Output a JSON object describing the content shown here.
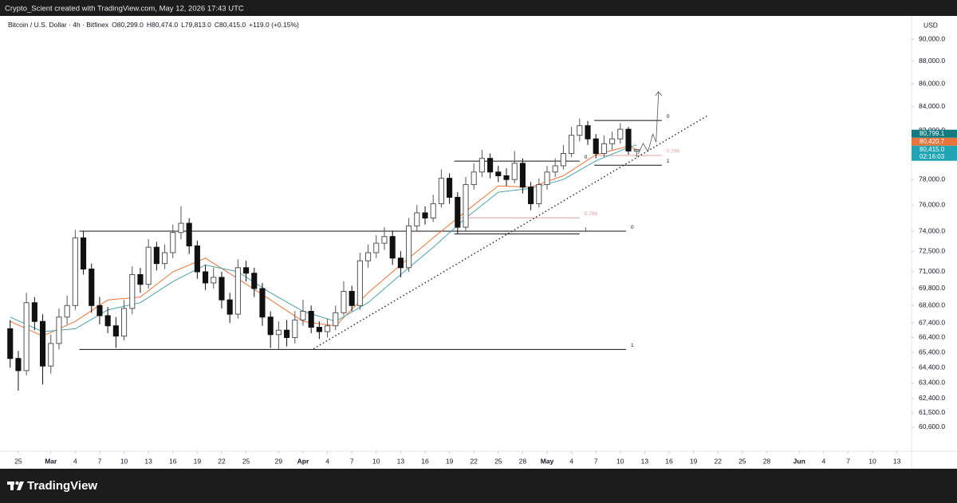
{
  "top_bar": {
    "text": "Crypto_Scient created with TradingView.com, May 12, 2026 17:43 UTC"
  },
  "header": {
    "symbol": "Bitcoin / U.S. Dollar · 4h · Bitfinex",
    "fields": [
      "O80,299.0",
      "H80,474.0",
      "L79,813.0",
      "C80,415.0",
      "+119.0 (+0.15%)"
    ]
  },
  "footer": {
    "logo_text": "TradingView"
  },
  "chart_data": {
    "type": "candlestick",
    "y_unit": "USD",
    "log_scale": true,
    "grid": false,
    "up_color": "#555555",
    "down_color": "#111111",
    "xlim": [
      -2.25,
      109.8
    ],
    "ylim": [
      59140,
      92150
    ],
    "xticks": [
      {
        "value": 0,
        "label": "25"
      },
      {
        "value": 4,
        "label": "Mar"
      },
      {
        "value": 7,
        "label": "4"
      },
      {
        "value": 10,
        "label": "7"
      },
      {
        "value": 13,
        "label": "10"
      },
      {
        "value": 16,
        "label": "13"
      },
      {
        "value": 19,
        "label": "16"
      },
      {
        "value": 22,
        "label": "19"
      },
      {
        "value": 25,
        "label": "22"
      },
      {
        "value": 28,
        "label": "25"
      },
      {
        "value": 32,
        "label": "29"
      },
      {
        "value": 35,
        "label": "Apr"
      },
      {
        "value": 38,
        "label": "4"
      },
      {
        "value": 41,
        "label": "7"
      },
      {
        "value": 44,
        "label": "10"
      },
      {
        "value": 47,
        "label": "13"
      },
      {
        "value": 50,
        "label": "16"
      },
      {
        "value": 53,
        "label": "19"
      },
      {
        "value": 56,
        "label": "22"
      },
      {
        "value": 59,
        "label": "25"
      },
      {
        "value": 62,
        "label": "28"
      },
      {
        "value": 65,
        "label": "May"
      },
      {
        "value": 68,
        "label": "4"
      },
      {
        "value": 71,
        "label": "7"
      },
      {
        "value": 74,
        "label": "10"
      },
      {
        "value": 77,
        "label": "13"
      },
      {
        "value": 80,
        "label": "16"
      },
      {
        "value": 83,
        "label": "19"
      },
      {
        "value": 86,
        "label": "22"
      },
      {
        "value": 89,
        "label": "25"
      },
      {
        "value": 92,
        "label": "28"
      },
      {
        "value": 96,
        "label": "Jun"
      },
      {
        "value": 99,
        "label": "4"
      },
      {
        "value": 102,
        "label": "7"
      },
      {
        "value": 105,
        "label": "10"
      },
      {
        "value": 108,
        "label": "13"
      }
    ],
    "yticks": [
      {
        "value": 90000,
        "label": "90,000.0"
      },
      {
        "value": 88000,
        "label": "88,000.0"
      },
      {
        "value": 86000,
        "label": "86,000.0"
      },
      {
        "value": 84000,
        "label": "84,000.0"
      },
      {
        "value": 82000,
        "label": "82,000.0"
      },
      {
        "value": 78000,
        "label": "78,000.0"
      },
      {
        "value": 76000,
        "label": "76,000.0"
      },
      {
        "value": 74000,
        "label": "74,000.0"
      },
      {
        "value": 72500,
        "label": "72,500.0"
      },
      {
        "value": 71000,
        "label": "71,000.0"
      },
      {
        "value": 69800,
        "label": "69,800.0"
      },
      {
        "value": 68600,
        "label": "68,600.0"
      },
      {
        "value": 67400,
        "label": "67,400.0"
      },
      {
        "value": 66400,
        "label": "66,400.0"
      },
      {
        "value": 65400,
        "label": "65,400.0"
      },
      {
        "value": 64400,
        "label": "64,400.0"
      },
      {
        "value": 63400,
        "label": "63,400.0"
      },
      {
        "value": 62400,
        "label": "62,400.0"
      },
      {
        "value": 61500,
        "label": "61,500.0"
      },
      {
        "value": 60600,
        "label": "60,600.0"
      }
    ],
    "x": [
      -1,
      0,
      1,
      2,
      3,
      4,
      5,
      6,
      7,
      8,
      9,
      10,
      11,
      12,
      13,
      14,
      15,
      16,
      17,
      18,
      19,
      20,
      21,
      22,
      23,
      24,
      25,
      26,
      27,
      28,
      29,
      30,
      31,
      32,
      33,
      34,
      35,
      36,
      37,
      38,
      39,
      40,
      41,
      42,
      43,
      44,
      45,
      46,
      47,
      48,
      49,
      50,
      51,
      52,
      53,
      54,
      55,
      56,
      57,
      58,
      59,
      60,
      61,
      62,
      63,
      64,
      65,
      66,
      67,
      68,
      69,
      70,
      71,
      72,
      73,
      74,
      75,
      76
    ],
    "open": [
      67000,
      65000,
      64200,
      68800,
      67500,
      64500,
      66000,
      67800,
      68600,
      73500,
      71200,
      68600,
      67900,
      67200,
      66500,
      68400,
      70800,
      70100,
      72800,
      71600,
      72400,
      73900,
      74600,
      72900,
      71000,
      70200,
      70600,
      69000,
      68000,
      71300,
      70900,
      69800,
      67800,
      66600,
      66900,
      66400,
      67600,
      68200,
      67100,
      66800,
      67200,
      68100,
      69600,
      68600,
      71800,
      72400,
      73100,
      73600,
      72000,
      71300,
      74400,
      75400,
      75000,
      76100,
      78100,
      76600,
      74300,
      77600,
      78600,
      79700,
      78600,
      78300,
      78000,
      79300,
      77400,
      76100,
      77600,
      78600,
      79100,
      80100,
      81600,
      82400,
      81300,
      80100,
      80900,
      81300,
      82100,
      80299
    ],
    "high": [
      67600,
      65500,
      69500,
      69200,
      68000,
      66600,
      68400,
      69300,
      74100,
      74000,
      71600,
      69200,
      68500,
      67800,
      69000,
      71400,
      71300,
      73400,
      73200,
      73000,
      74500,
      75900,
      75000,
      73300,
      71500,
      71300,
      71000,
      69500,
      71900,
      71800,
      71300,
      70200,
      68200,
      67500,
      67600,
      68200,
      69000,
      68600,
      67500,
      67700,
      68600,
      70300,
      70000,
      72400,
      73000,
      73700,
      74300,
      74000,
      72500,
      75000,
      76000,
      75900,
      76800,
      78800,
      78500,
      77000,
      78200,
      79300,
      80400,
      80100,
      79100,
      78900,
      80300,
      79700,
      77800,
      78100,
      79100,
      79700,
      80800,
      82300,
      83000,
      82800,
      81700,
      81600,
      81900,
      82600,
      82300,
      80474
    ],
    "low": [
      64400,
      62900,
      63900,
      66900,
      63300,
      64000,
      65600,
      67300,
      68300,
      70800,
      68100,
      67300,
      66700,
      65700,
      66200,
      68000,
      69500,
      69800,
      71100,
      71200,
      72000,
      73400,
      72300,
      70500,
      69700,
      69800,
      68400,
      67400,
      67700,
      70300,
      69200,
      67200,
      65700,
      65600,
      65800,
      66000,
      67200,
      66700,
      66300,
      66400,
      66900,
      67900,
      68200,
      68300,
      71300,
      72000,
      72600,
      71500,
      70600,
      71000,
      74000,
      74500,
      74700,
      75800,
      76100,
      73800,
      74000,
      77200,
      78200,
      78100,
      77800,
      77500,
      77700,
      76900,
      75600,
      75800,
      77200,
      78200,
      78800,
      79800,
      81100,
      80800,
      79700,
      79800,
      80400,
      80900,
      80000,
      79813
    ],
    "close": [
      65000,
      64200,
      68800,
      67500,
      64500,
      66000,
      67800,
      68600,
      73500,
      71200,
      68600,
      67900,
      67200,
      66500,
      68400,
      70800,
      70100,
      72800,
      71600,
      72400,
      73900,
      74600,
      72900,
      71000,
      70200,
      70600,
      69000,
      68000,
      71300,
      70900,
      69800,
      67800,
      66600,
      66900,
      66400,
      67600,
      68200,
      67100,
      66800,
      67200,
      68100,
      69600,
      68600,
      71800,
      72400,
      73100,
      73600,
      72000,
      71300,
      74400,
      75400,
      75000,
      76100,
      78100,
      76600,
      74300,
      77600,
      78600,
      79700,
      78600,
      78300,
      78000,
      79300,
      77400,
      76100,
      77600,
      78600,
      79100,
      80100,
      81600,
      82400,
      81300,
      80100,
      80900,
      81300,
      82100,
      80300,
      80415
    ],
    "lines": [
      {
        "color": "#e8743b",
        "x": [
          -1,
          3,
          7,
          11,
          15,
          19,
          23,
          27,
          31,
          35,
          39,
          43,
          47,
          51,
          55,
          59,
          63,
          67,
          71,
          75,
          76
        ],
        "values": [
          67500,
          66500,
          67500,
          69000,
          69200,
          71000,
          72000,
          70500,
          69000,
          67500,
          67200,
          69500,
          71500,
          73500,
          75500,
          77500,
          77400,
          78300,
          80000,
          80700,
          80420.7
        ],
        "value_label": "80,420.7"
      },
      {
        "color": "#4fa3a5",
        "x": [
          -1,
          3,
          7,
          11,
          15,
          19,
          23,
          27,
          31,
          35,
          39,
          43,
          47,
          51,
          55,
          59,
          63,
          67,
          71,
          75,
          76
        ],
        "values": [
          67800,
          66800,
          67000,
          68300,
          68800,
          70300,
          71500,
          71000,
          69500,
          68200,
          67500,
          68800,
          70800,
          72800,
          75000,
          77000,
          77300,
          78000,
          79500,
          80600,
          80799.1
        ],
        "value_label": "80,799.1",
        "label_color": "#137a7f"
      }
    ],
    "last_price": {
      "value": 80415,
      "label": "80,415.0",
      "countdown": "02:16:03",
      "color": "#1fa4b4"
    },
    "fib_ranges": [
      {
        "x": [
          7.5,
          74.7
        ],
        "levels": [
          {
            "value": 74000,
            "label": "0",
            "color": "#111111"
          },
          {
            "value": 65600,
            "label": "1",
            "color": "#111111"
          }
        ]
      },
      {
        "x": [
          53.6,
          69
        ],
        "levels": [
          {
            "value": 79480,
            "label": "0",
            "color": "#111111"
          },
          {
            "value": 75015,
            "label": "0.786",
            "color": "#d9a0a0"
          },
          {
            "value": 73800,
            "label": "1",
            "color": "#111111"
          }
        ]
      },
      {
        "x": [
          70.8,
          79.1
        ],
        "levels": [
          {
            "value": 82840,
            "label": "0",
            "color": "#111111"
          },
          {
            "value": 79940,
            "label": "0.786",
            "color": "#d9a0a0"
          },
          {
            "value": 79150,
            "label": "1",
            "color": "#111111"
          }
        ]
      }
    ],
    "trend_line": {
      "x": [
        36.3,
        84.8
      ],
      "values": [
        65650,
        83280
      ]
    },
    "projection": {
      "x": [
        76.2,
        76.8,
        77.4,
        78.0,
        78.4,
        78.7
      ],
      "values": [
        80060,
        80920,
        80260,
        81700,
        81050,
        85300
      ]
    }
  }
}
